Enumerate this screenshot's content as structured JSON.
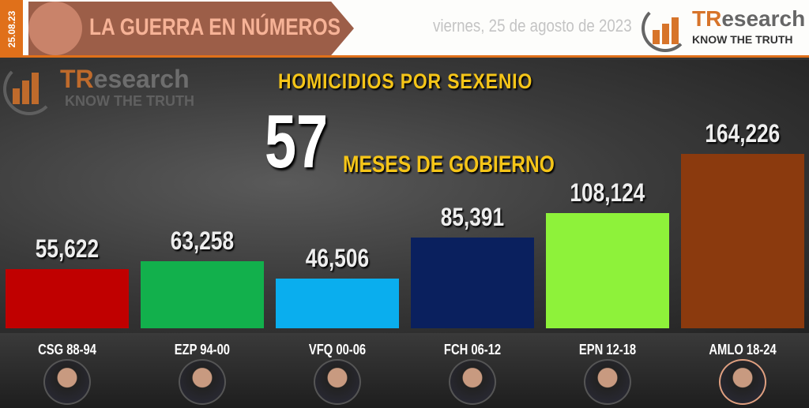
{
  "header": {
    "date_tab": "25.08.23",
    "banner_title": "LA GUERRA EN NÚMEROS",
    "date": "viernes, 25 de agosto de 2023",
    "logo_name": "TResearch",
    "logo_tagline": "KNOW THE TRUTH"
  },
  "chart_data": {
    "type": "bar",
    "title": "HOMICIDIOS POR SEXENIO",
    "annotation_number": "57",
    "annotation_text": "MESES DE GOBIERNO",
    "categories": [
      "CSG 88-94",
      "EZP 94-00",
      "VFQ 00-06",
      "FCH 06-12",
      "EPN 12-18",
      "AMLO 18-24"
    ],
    "values": [
      55622,
      63258,
      46506,
      85391,
      108124,
      164226
    ],
    "value_labels": [
      "55,622",
      "63,258",
      "46,506",
      "85,391",
      "108,124",
      "164,226"
    ],
    "colors": [
      "#c00000",
      "#12b04c",
      "#0aaeee",
      "#0a205e",
      "#8ef23a",
      "#8b3a0e"
    ],
    "ylim": [
      0,
      164226
    ],
    "grid": false
  }
}
